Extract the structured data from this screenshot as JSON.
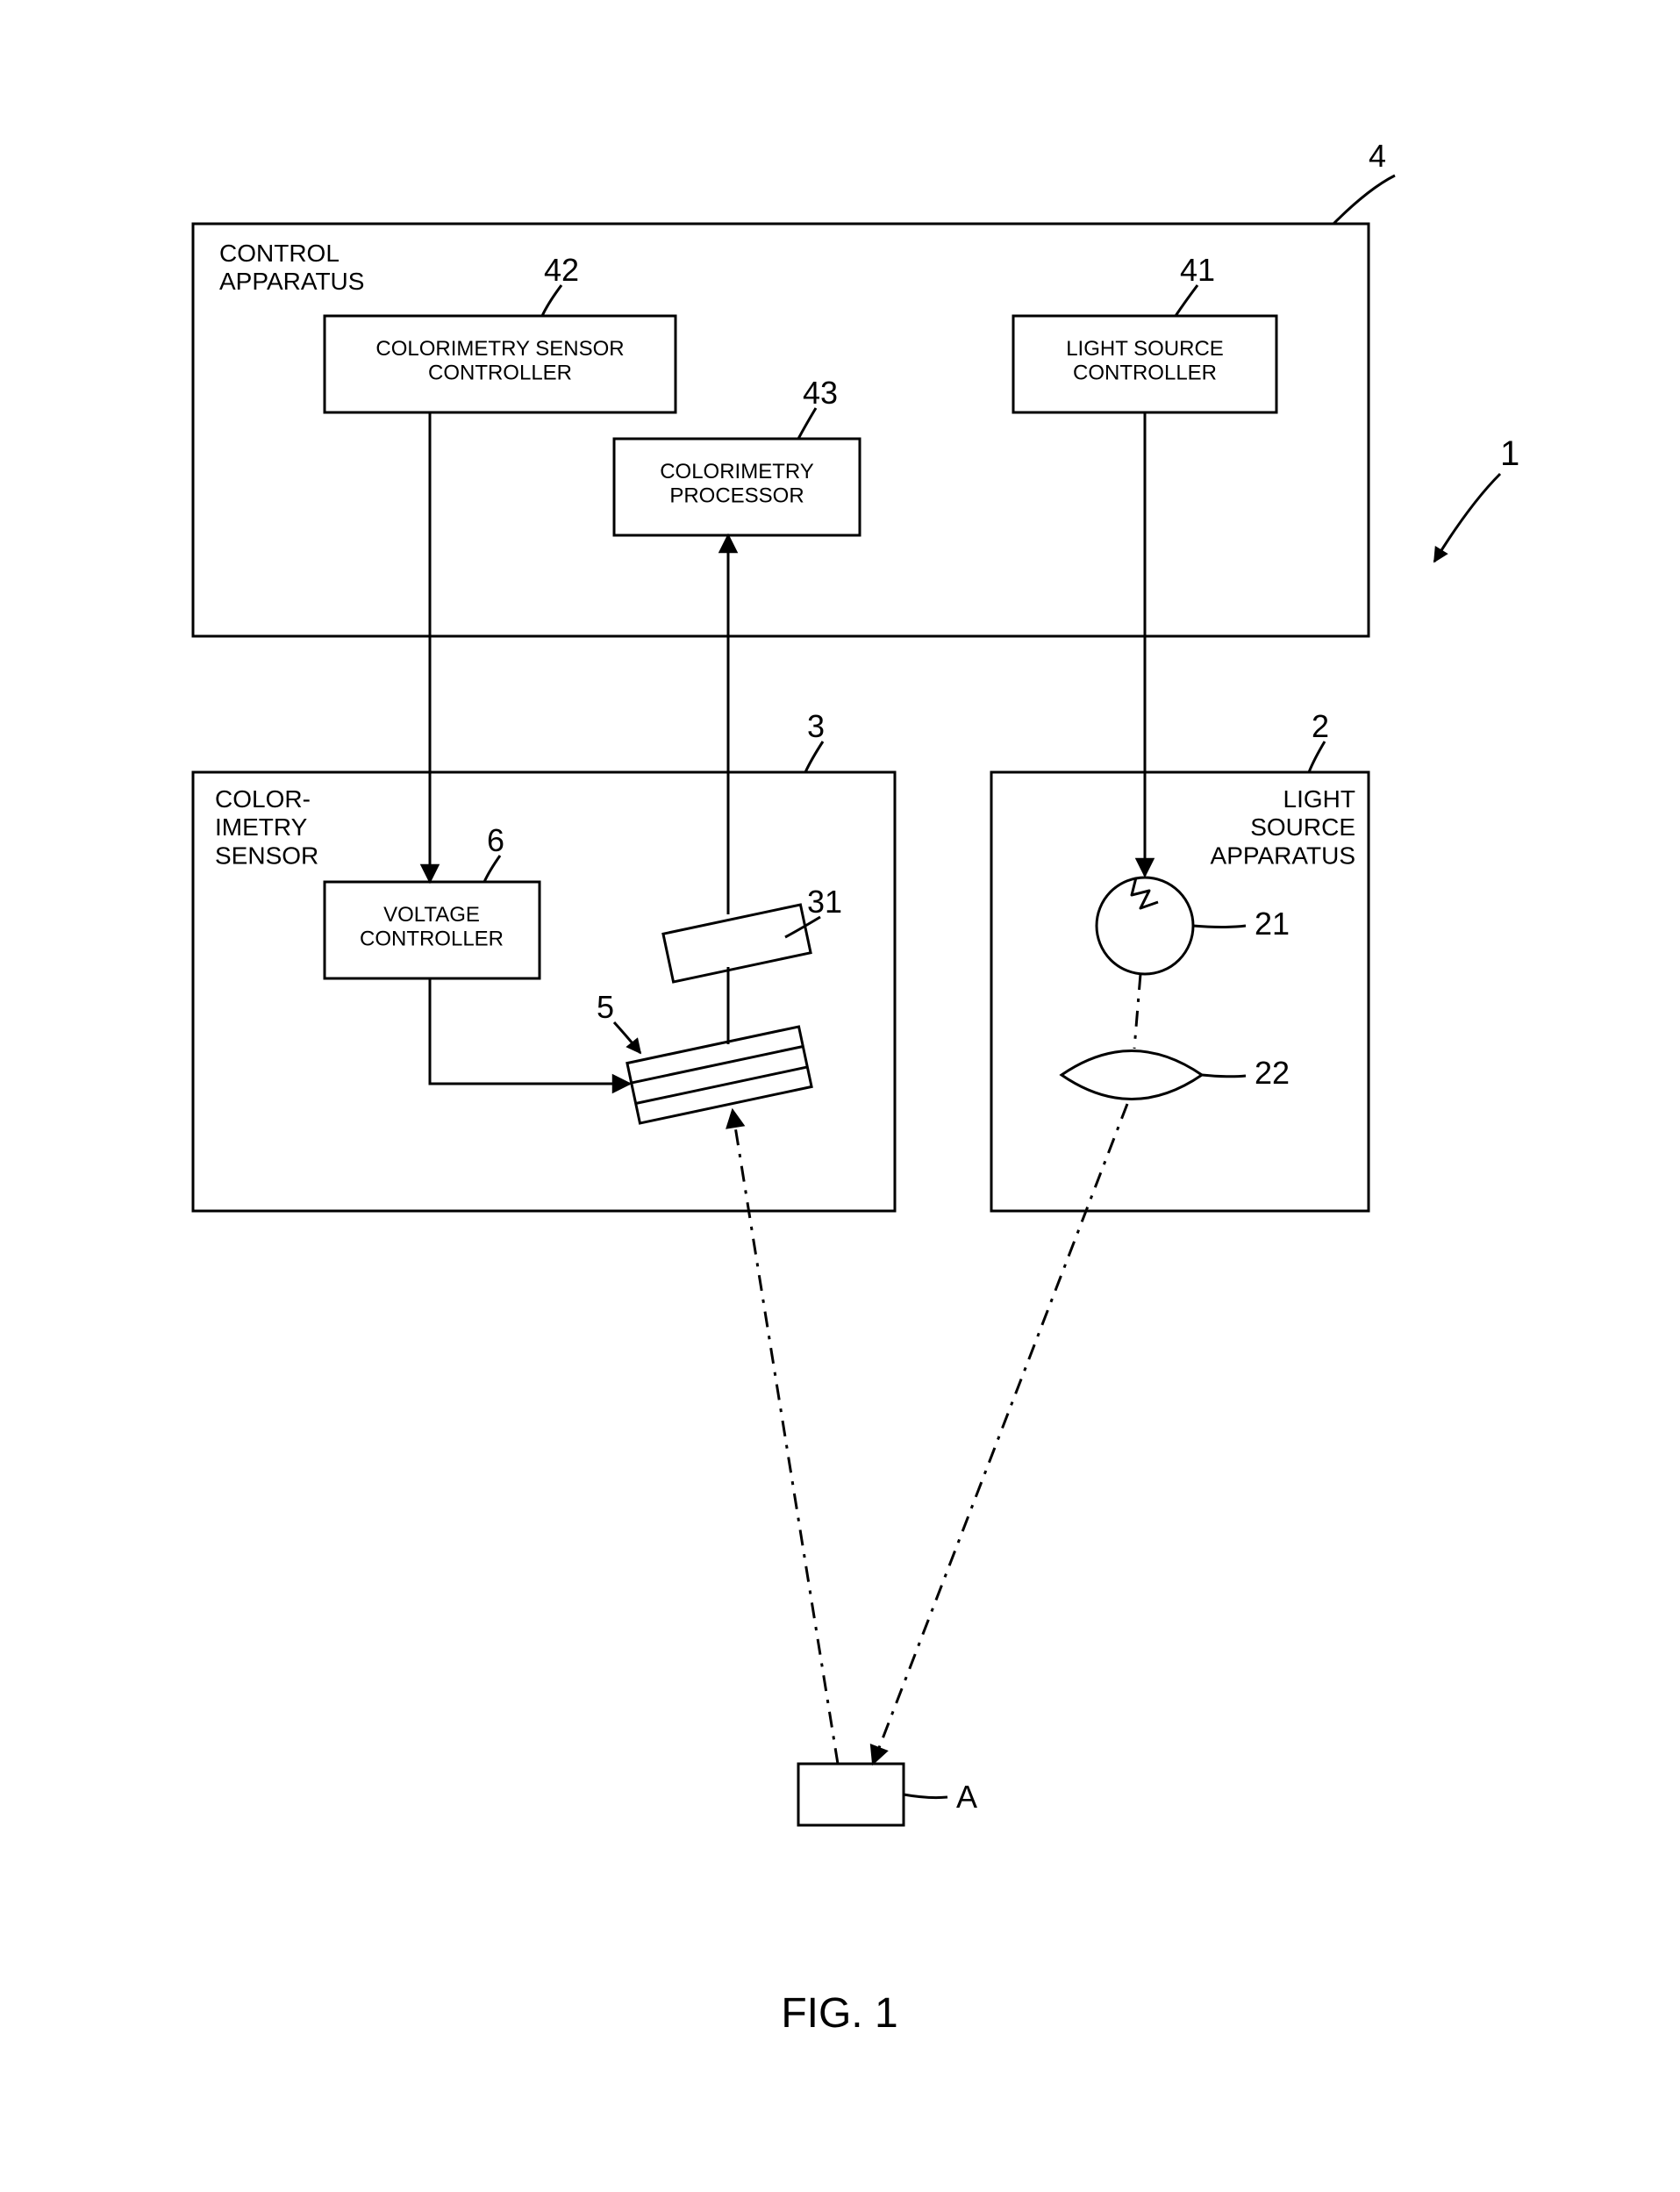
{
  "figure": {
    "caption": "FIG. 1",
    "caption_fontsize": 48,
    "caption_fontweight": "400",
    "background": "#ffffff",
    "stroke": "#000000",
    "stroke_width": 3,
    "label_fontsize": 28,
    "ref_fontsize": 36,
    "block_fontsize": 24
  },
  "refs": {
    "system": "1",
    "control": "4",
    "light_apparatus": "2",
    "sensor": "3",
    "voltage": "6",
    "filter": "5",
    "receiver": "31",
    "lamp": "21",
    "lens": "22",
    "light_controller": "41",
    "sensor_controller": "42",
    "processor": "43",
    "target": "A"
  },
  "labels": {
    "control": "CONTROL\nAPPARATUS",
    "sensor": "COLOR-\nIMETRY\nSENSOR",
    "light_apparatus": "LIGHT\nSOURCE\nAPPARATUS",
    "light_controller": "LIGHT SOURCE\nCONTROLLER",
    "sensor_controller": "COLORIMETRY SENSOR\nCONTROLLER",
    "processor": "COLORIMETRY\nPROCESSOR",
    "voltage": "VOLTAGE\nCONTROLLER"
  }
}
